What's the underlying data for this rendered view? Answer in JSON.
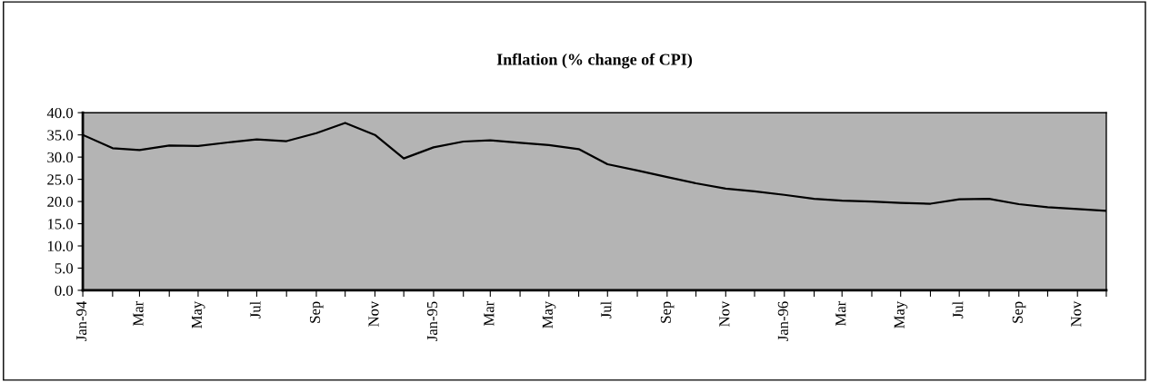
{
  "chart_data": {
    "type": "line",
    "title": "Inflation (% change of CPI)",
    "x": [
      "1994-01",
      "1994-02",
      "1994-03",
      "1994-04",
      "1994-05",
      "1994-06",
      "1994-07",
      "1994-08",
      "1994-09",
      "1994-10",
      "1994-11",
      "1994-12",
      "1995-01",
      "1995-02",
      "1995-03",
      "1995-04",
      "1995-05",
      "1995-06",
      "1995-07",
      "1995-08",
      "1995-09",
      "1995-10",
      "1995-11",
      "1995-12",
      "1996-01",
      "1996-02",
      "1996-03",
      "1996-04",
      "1996-05",
      "1996-06",
      "1996-07",
      "1996-08",
      "1996-09",
      "1996-10",
      "1996-11",
      "1996-12"
    ],
    "series": [
      {
        "color": "#000000",
        "values": [
          35.0,
          32.0,
          31.6,
          32.6,
          32.5,
          33.3,
          34.0,
          33.6,
          35.4,
          37.7,
          35.0,
          29.7,
          32.2,
          33.5,
          33.8,
          33.2,
          32.7,
          31.8,
          28.4,
          27.0,
          25.5,
          24.1,
          22.9,
          22.3,
          21.5,
          20.6,
          20.2,
          20.0,
          19.7,
          19.5,
          20.5,
          20.6,
          19.4,
          18.7,
          18.3,
          17.9
        ]
      }
    ],
    "xlim": [
      "1994-01",
      "1996-12"
    ],
    "xticks": [
      {
        "value": "1994-01",
        "label": "Jan-94"
      },
      {
        "value": "1994-02",
        "label": null
      },
      {
        "value": "1994-03",
        "label": "Mar"
      },
      {
        "value": "1994-04",
        "label": null
      },
      {
        "value": "1994-05",
        "label": "May"
      },
      {
        "value": "1994-06",
        "label": null
      },
      {
        "value": "1994-07",
        "label": "Jul"
      },
      {
        "value": "1994-08",
        "label": null
      },
      {
        "value": "1994-09",
        "label": "Sep"
      },
      {
        "value": "1994-10",
        "label": null
      },
      {
        "value": "1994-11",
        "label": "Nov"
      },
      {
        "value": "1994-12",
        "label": null
      },
      {
        "value": "1995-01",
        "label": "Jan-95"
      },
      {
        "value": "1995-02",
        "label": null
      },
      {
        "value": "1995-03",
        "label": "Mar"
      },
      {
        "value": "1995-04",
        "label": null
      },
      {
        "value": "1995-05",
        "label": "May"
      },
      {
        "value": "1995-06",
        "label": null
      },
      {
        "value": "1995-07",
        "label": "Jul"
      },
      {
        "value": "1995-08",
        "label": null
      },
      {
        "value": "1995-09",
        "label": "Sep"
      },
      {
        "value": "1995-10",
        "label": null
      },
      {
        "value": "1995-11",
        "label": "Nov"
      },
      {
        "value": "1995-12",
        "label": null
      },
      {
        "value": "1996-01",
        "label": "Jan-96"
      },
      {
        "value": "1996-02",
        "label": null
      },
      {
        "value": "1996-03",
        "label": "Mar"
      },
      {
        "value": "1996-04",
        "label": null
      },
      {
        "value": "1996-05",
        "label": "May"
      },
      {
        "value": "1996-06",
        "label": null
      },
      {
        "value": "1996-07",
        "label": "Jul"
      },
      {
        "value": "1996-08",
        "label": null
      },
      {
        "value": "1996-09",
        "label": "Sep"
      },
      {
        "value": "1996-10",
        "label": null
      },
      {
        "value": "1996-11",
        "label": "Nov"
      },
      {
        "value": "1996-12",
        "label": null
      }
    ],
    "ylim": [
      0,
      40
    ],
    "yticks": [
      {
        "value": 0,
        "label": "0.0"
      },
      {
        "value": 5,
        "label": "5.0"
      },
      {
        "value": 10,
        "label": "10.0"
      },
      {
        "value": 15,
        "label": "15.0"
      },
      {
        "value": 20,
        "label": "20.0"
      },
      {
        "value": 25,
        "label": "25.0"
      },
      {
        "value": 30,
        "label": "30.0"
      },
      {
        "value": 35,
        "label": "35.0"
      },
      {
        "value": 40,
        "label": "40.0"
      }
    ],
    "legend": false,
    "marker": "none",
    "line_style": "solid"
  }
}
